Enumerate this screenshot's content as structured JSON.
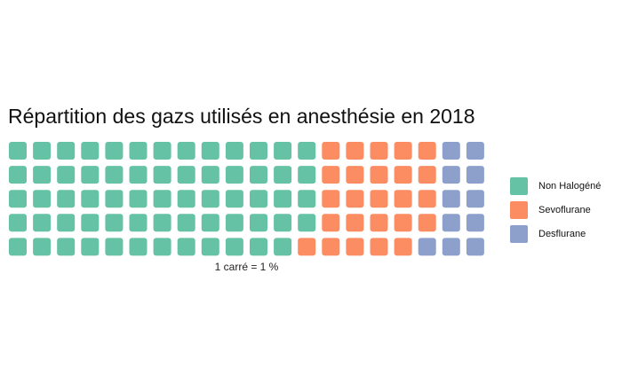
{
  "chart_data": {
    "type": "waffle",
    "title": "Répartition des gazs utilisés en anesthésie en 2018",
    "caption": "1 carré = 1 %",
    "rows": 5,
    "series": [
      {
        "name": "Non Halogéné",
        "value": 64,
        "color": "#66C2A5"
      },
      {
        "name": "Sevoflurane",
        "value": 25,
        "color": "#FC8D62"
      },
      {
        "name": "Desflurane",
        "value": 11,
        "color": "#8DA0CB"
      }
    ],
    "legend_position": "right"
  }
}
